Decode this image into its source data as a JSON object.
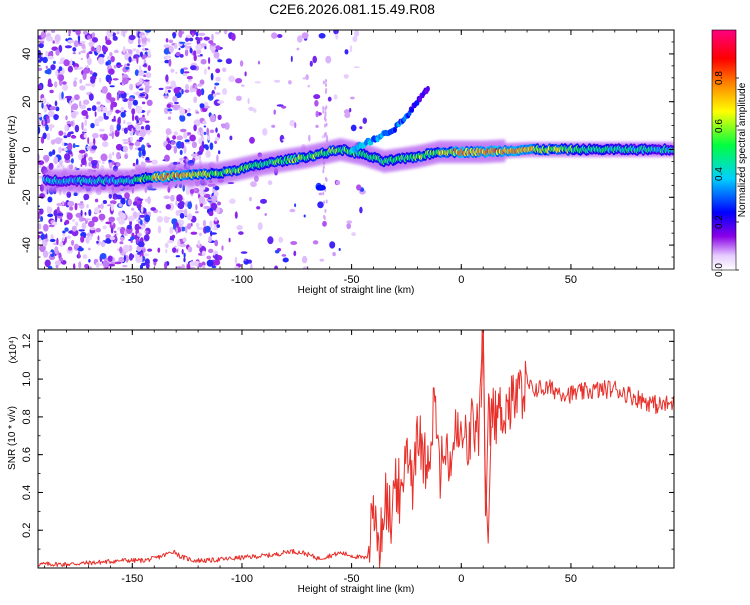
{
  "title": "C2E6.2026.081.15.49.R08",
  "chart_data": [
    {
      "type": "heatmap",
      "xlabel": "Height of straight line (km)",
      "ylabel": "Frequency (Hz)",
      "xlim": [
        -193,
        97
      ],
      "ylim": [
        -50,
        50
      ],
      "xticks": [
        -150,
        -100,
        -50,
        0,
        50
      ],
      "xtick_labels": [
        "-150",
        "-100",
        "-50",
        "0",
        "50"
      ],
      "yticks": [
        -40,
        -20,
        0,
        20,
        40
      ],
      "ytick_labels": [
        "-40",
        "-20",
        "0",
        "20",
        "40"
      ],
      "grid": false,
      "colorbar": {
        "label": "Normalized spectral amplitude",
        "range": [
          0.0,
          1.0
        ],
        "ticks": [
          0.0,
          0.2,
          0.4,
          0.6,
          0.8
        ],
        "tick_labels": [
          "0.0",
          "0.2",
          "0.4",
          "0.6",
          "0.8"
        ],
        "colormap": [
          "#ffffff",
          "#7a00e6",
          "#0000ff",
          "#00cfff",
          "#00ff40",
          "#ffff00",
          "#ff8000",
          "#ff0000",
          "#ff0080"
        ]
      },
      "ridge": {
        "x": [
          -190,
          -150,
          -145,
          -130,
          -110,
          -90,
          -70,
          -55,
          -45,
          -35,
          -20,
          -10,
          0,
          10,
          30,
          60,
          97
        ],
        "y": [
          -13,
          -13,
          -12,
          -11,
          -10,
          -6,
          -3,
          0,
          -2,
          -5,
          -3,
          -1,
          -1,
          -1,
          0,
          0,
          0
        ],
        "amplitude": [
          0.4,
          0.45,
          0.65,
          0.8,
          0.6,
          0.55,
          0.6,
          0.6,
          0.5,
          0.55,
          0.6,
          0.65,
          0.8,
          0.8,
          0.75,
          0.5,
          0.45
        ]
      },
      "secondary_branch": {
        "x": [
          -50,
          -40,
          -30,
          -25,
          -20,
          -15
        ],
        "y": [
          0,
          4,
          9,
          14,
          20,
          26
        ],
        "amplitude": [
          0.4,
          0.35,
          0.3,
          0.3,
          0.25,
          0.15
        ]
      }
    },
    {
      "type": "line",
      "xlabel": "Height of straight line (km)",
      "ylabel": "SNR (10 * v/v)",
      "y_multiplier_label": "(x10⁴)",
      "xlim": [
        -193,
        97
      ],
      "ylim": [
        0,
        1.26
      ],
      "xticks": [
        -150,
        -100,
        -50,
        0,
        50
      ],
      "xtick_labels": [
        "-150",
        "-100",
        "-50",
        "0",
        "50"
      ],
      "yticks": [
        0.2,
        0.4,
        0.6,
        0.8,
        1.0,
        1.2
      ],
      "ytick_labels": [
        "0.2",
        "0.4",
        "0.6",
        "0.8",
        "1.0",
        "1.2"
      ],
      "grid": false,
      "color": "#e8302a",
      "series": [
        {
          "x": [
            -193,
            -180,
            -165,
            -155,
            -145,
            -140,
            -135,
            -131,
            -128,
            -122,
            -115,
            -105,
            -95,
            -85,
            -78,
            -72,
            -65,
            -55,
            -48,
            -43,
            -40,
            -37,
            -35,
            -32,
            -30,
            -27,
            -25,
            -22,
            -20,
            -18,
            -15,
            -12,
            -10,
            -8,
            -5,
            -3,
            0,
            3,
            5,
            8,
            10,
            11,
            12,
            15,
            20,
            25,
            30,
            40,
            50,
            60,
            70,
            80,
            90,
            97
          ],
          "y": [
            0.02,
            0.02,
            0.03,
            0.04,
            0.04,
            0.05,
            0.07,
            0.09,
            0.06,
            0.04,
            0.04,
            0.05,
            0.06,
            0.07,
            0.09,
            0.08,
            0.05,
            0.08,
            0.06,
            0.05,
            0.3,
            0.12,
            0.38,
            0.25,
            0.5,
            0.3,
            0.7,
            0.45,
            0.8,
            0.58,
            0.6,
            0.9,
            0.5,
            0.6,
            0.55,
            0.7,
            0.68,
            0.65,
            0.75,
            0.72,
            1.26,
            0.13,
            0.78,
            0.8,
            0.85,
            0.9,
            0.95,
            0.95,
            0.92,
            0.94,
            0.95,
            0.9,
            0.86,
            0.87
          ]
        }
      ]
    }
  ]
}
